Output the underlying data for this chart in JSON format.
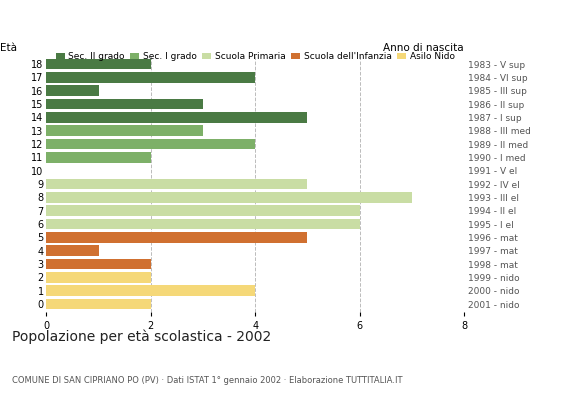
{
  "ages": [
    18,
    17,
    16,
    15,
    14,
    13,
    12,
    11,
    10,
    9,
    8,
    7,
    6,
    5,
    4,
    3,
    2,
    1,
    0
  ],
  "years": [
    "1983 - V sup",
    "1984 - VI sup",
    "1985 - III sup",
    "1986 - II sup",
    "1987 - I sup",
    "1988 - III med",
    "1989 - II med",
    "1990 - I med",
    "1991 - V el",
    "1992 - IV el",
    "1993 - III el",
    "1994 - II el",
    "1995 - I el",
    "1996 - mat",
    "1997 - mat",
    "1998 - mat",
    "1999 - nido",
    "2000 - nido",
    "2001 - nido"
  ],
  "values": [
    2,
    4,
    1,
    3,
    5,
    3,
    4,
    2,
    0,
    5,
    7,
    6,
    6,
    5,
    1,
    2,
    2,
    4,
    2
  ],
  "categories": [
    "Sec. II grado",
    "Sec. II grado",
    "Sec. II grado",
    "Sec. II grado",
    "Sec. II grado",
    "Sec. I grado",
    "Sec. I grado",
    "Sec. I grado",
    "Scuola Primaria",
    "Scuola Primaria",
    "Scuola Primaria",
    "Scuola Primaria",
    "Scuola Primaria",
    "Scuola dell'Infanzia",
    "Scuola dell'Infanzia",
    "Scuola dell'Infanzia",
    "Asilo Nido",
    "Asilo Nido",
    "Asilo Nido"
  ],
  "colors": {
    "Sec. II grado": "#4a7a44",
    "Sec. I grado": "#7db068",
    "Scuola Primaria": "#c9dda4",
    "Scuola dell'Infanzia": "#d07030",
    "Asilo Nido": "#f5d878"
  },
  "legend_labels": [
    "Sec. II grado",
    "Sec. I grado",
    "Scuola Primaria",
    "Scuola dell'Infanzia",
    "Asilo Nido"
  ],
  "title": "Popolazione per età scolastica - 2002",
  "subtitle": "COMUNE DI SAN CIPRIANO PO (PV) · Dati ISTAT 1° gennaio 2002 · Elaborazione TUTTITALIA.IT",
  "label_eta": "Età",
  "label_anno": "Anno di nascita",
  "xlim": [
    0,
    8
  ],
  "xticks": [
    0,
    2,
    4,
    6,
    8
  ],
  "background_color": "#ffffff",
  "grid_color": "#bbbbbb",
  "bar_height": 0.82
}
